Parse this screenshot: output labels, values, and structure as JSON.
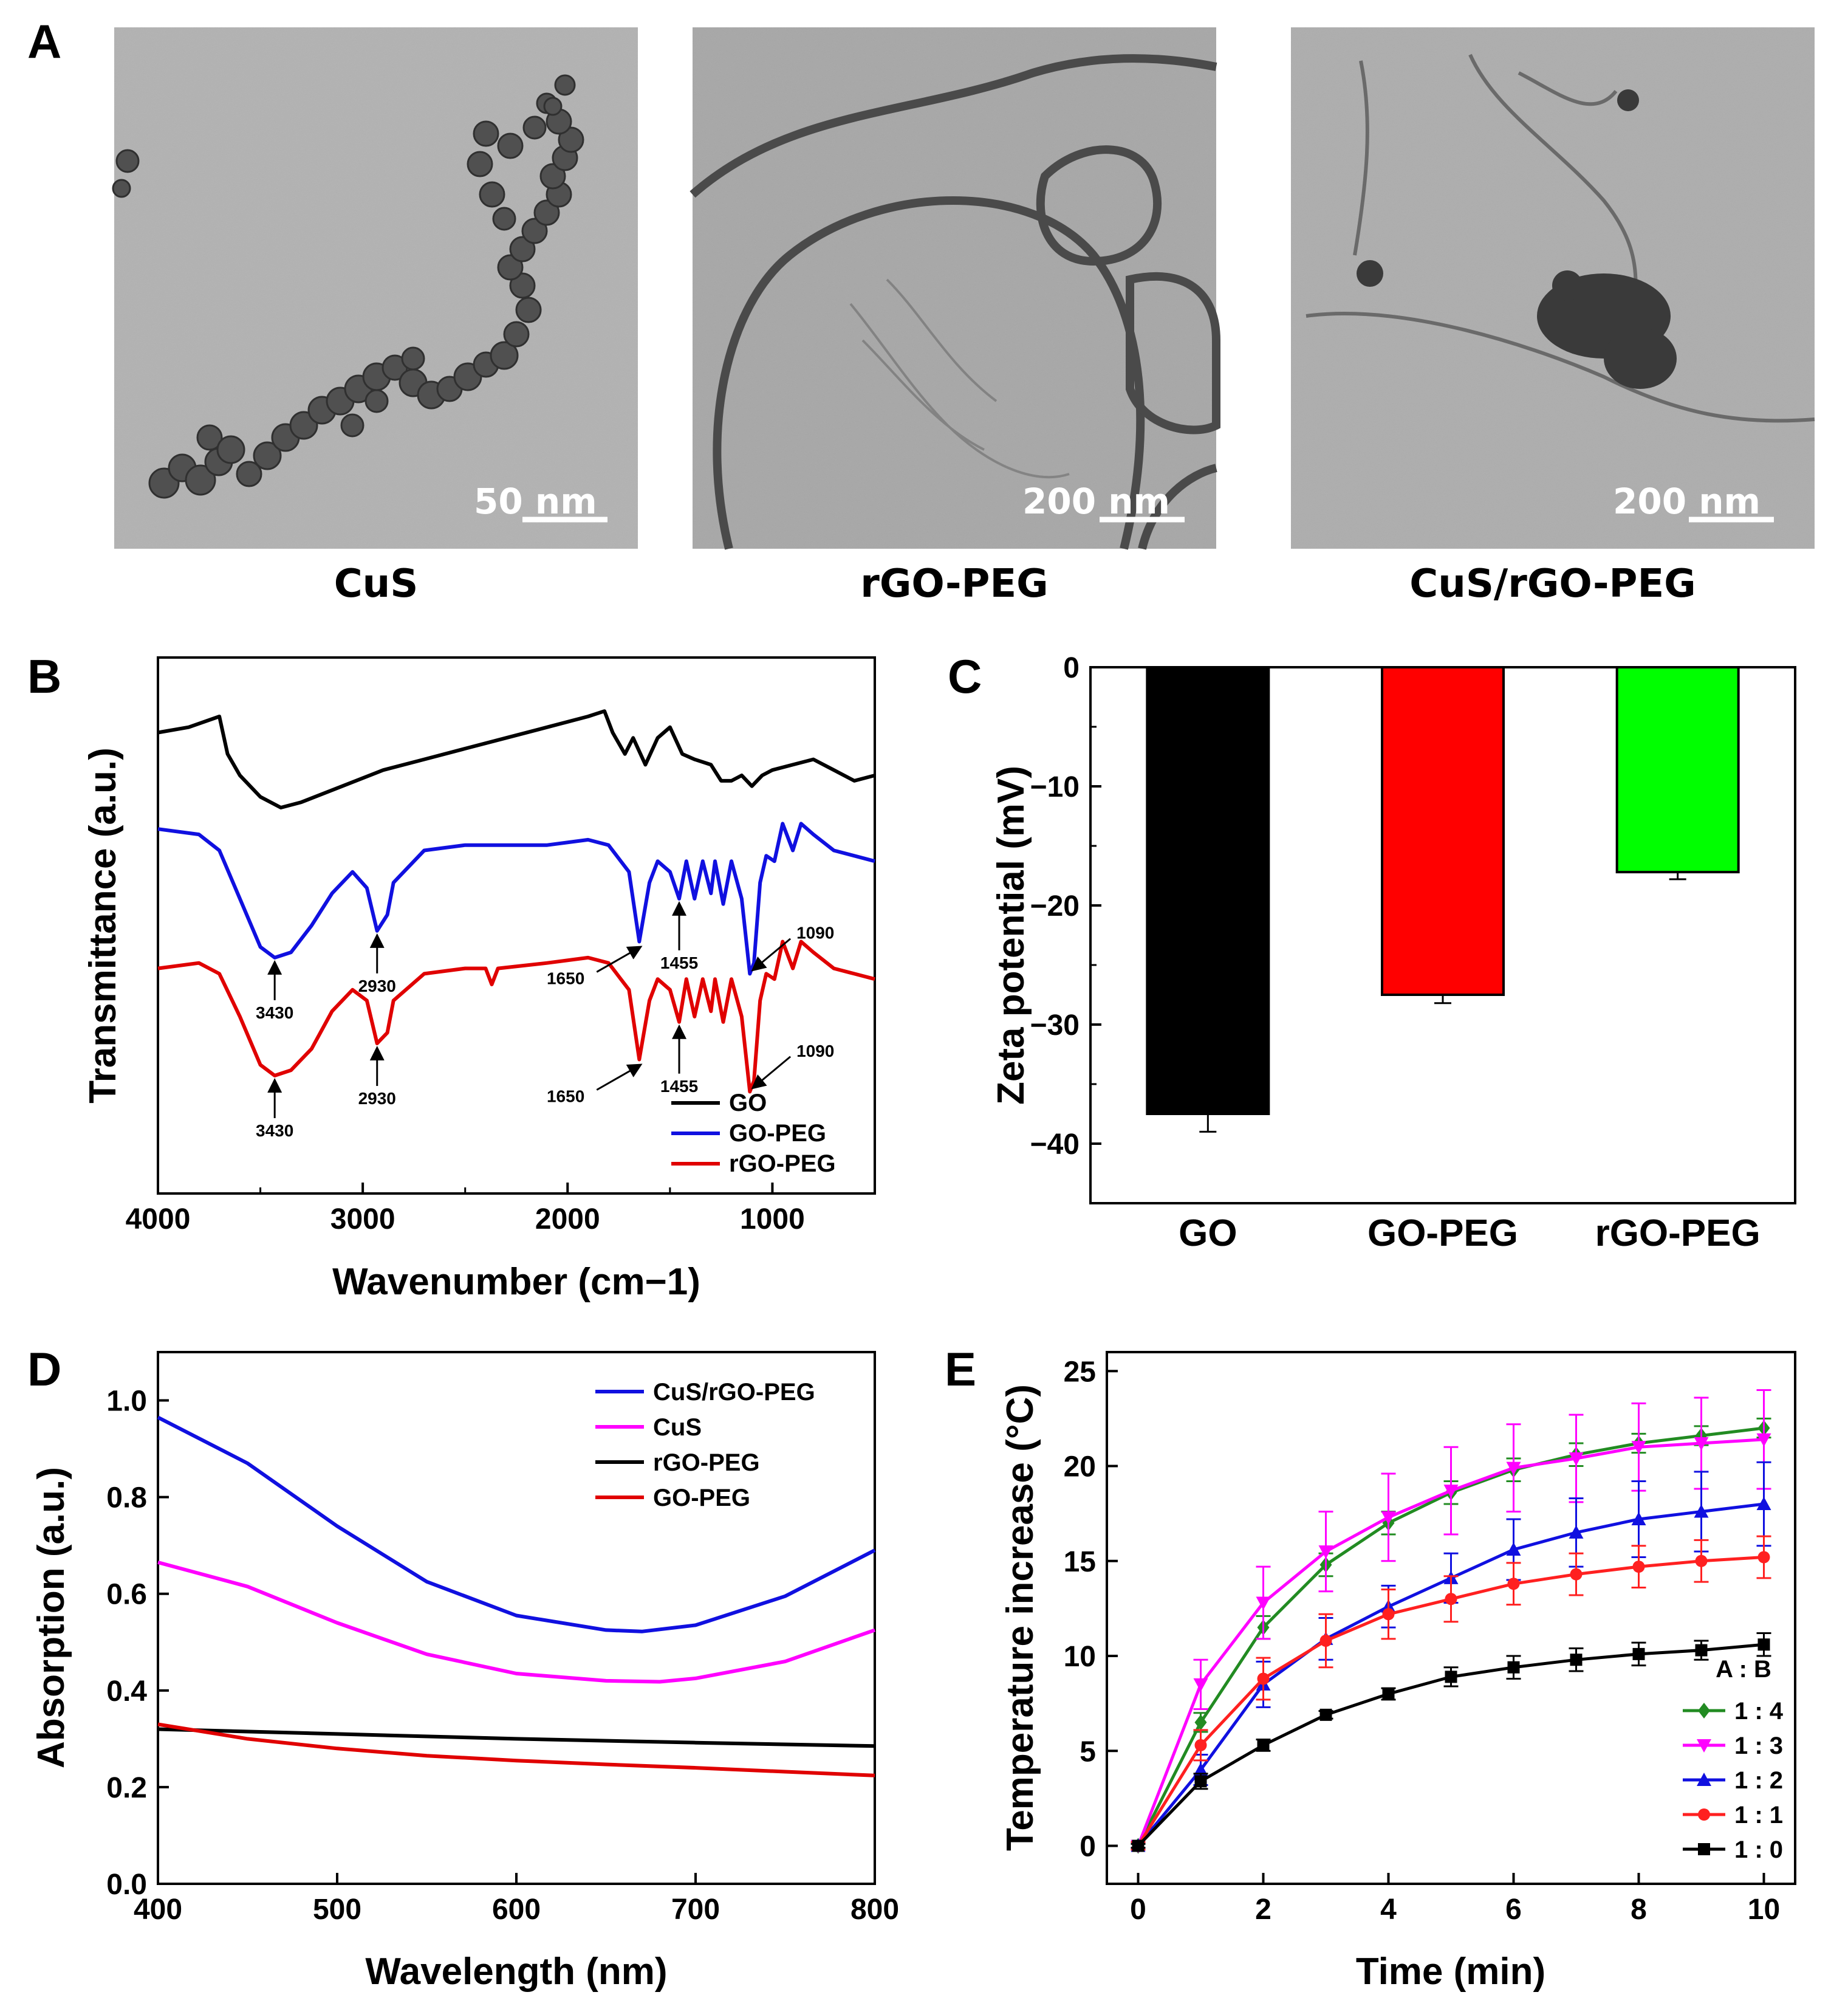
{
  "figure": {
    "panel_labels": [
      "A",
      "B",
      "C",
      "D",
      "E"
    ]
  },
  "tem_images": [
    {
      "caption": "CuS",
      "scale_bar": "50 nm"
    },
    {
      "caption": "rGO-PEG",
      "scale_bar": "200 nm"
    },
    {
      "caption": "CuS/rGO-PEG",
      "scale_bar": "200 nm"
    }
  ],
  "chart_data": [
    {
      "panel": "B",
      "type": "line",
      "title": "",
      "xlabel": "Wavenumber (cm−1)",
      "ylabel": "Transmittance (a.u.)",
      "xlim": [
        4000,
        500
      ],
      "ylim": [
        0,
        100
      ],
      "xticks": [
        "4000",
        "3000",
        "2000",
        "1000"
      ],
      "legend": {
        "position": "bottom-right"
      },
      "series": [
        {
          "name": "GO",
          "color": "#000000",
          "points": [
            [
              4000,
              86
            ],
            [
              3850,
              87
            ],
            [
              3700,
              89
            ],
            [
              3660,
              82
            ],
            [
              3600,
              78
            ],
            [
              3500,
              74
            ],
            [
              3400,
              72
            ],
            [
              3300,
              73
            ],
            [
              3100,
              76
            ],
            [
              2900,
              79
            ],
            [
              2700,
              81
            ],
            [
              2500,
              83
            ],
            [
              2300,
              85
            ],
            [
              2100,
              87
            ],
            [
              1900,
              89
            ],
            [
              1820,
              90
            ],
            [
              1780,
              86
            ],
            [
              1720,
              82
            ],
            [
              1680,
              85
            ],
            [
              1620,
              80
            ],
            [
              1560,
              85
            ],
            [
              1500,
              87
            ],
            [
              1440,
              82
            ],
            [
              1380,
              81
            ],
            [
              1300,
              80
            ],
            [
              1250,
              77
            ],
            [
              1200,
              77
            ],
            [
              1150,
              78
            ],
            [
              1100,
              76
            ],
            [
              1050,
              78
            ],
            [
              1000,
              79
            ],
            [
              900,
              80
            ],
            [
              800,
              81
            ],
            [
              700,
              79
            ],
            [
              600,
              77
            ],
            [
              500,
              78
            ]
          ]
        },
        {
          "name": "GO-PEG",
          "color": "#1010e0",
          "points": [
            [
              4000,
              68
            ],
            [
              3800,
              67
            ],
            [
              3700,
              64
            ],
            [
              3600,
              55
            ],
            [
              3500,
              46
            ],
            [
              3430,
              44
            ],
            [
              3350,
              45
            ],
            [
              3250,
              50
            ],
            [
              3150,
              56
            ],
            [
              3050,
              60
            ],
            [
              2980,
              57
            ],
            [
              2930,
              49
            ],
            [
              2880,
              52
            ],
            [
              2850,
              58
            ],
            [
              2700,
              64
            ],
            [
              2500,
              65
            ],
            [
              2300,
              65
            ],
            [
              2100,
              65
            ],
            [
              1900,
              66
            ],
            [
              1800,
              65
            ],
            [
              1700,
              60
            ],
            [
              1650,
              47
            ],
            [
              1600,
              58
            ],
            [
              1560,
              62
            ],
            [
              1500,
              60
            ],
            [
              1455,
              55
            ],
            [
              1420,
              62
            ],
            [
              1380,
              55
            ],
            [
              1340,
              62
            ],
            [
              1300,
              56
            ],
            [
              1280,
              62
            ],
            [
              1240,
              54
            ],
            [
              1200,
              62
            ],
            [
              1150,
              55
            ],
            [
              1110,
              41
            ],
            [
              1090,
              43
            ],
            [
              1060,
              58
            ],
            [
              1030,
              63
            ],
            [
              990,
              62
            ],
            [
              950,
              69
            ],
            [
              900,
              64
            ],
            [
              860,
              69
            ],
            [
              800,
              67
            ],
            [
              700,
              64
            ],
            [
              600,
              63
            ],
            [
              500,
              62
            ]
          ]
        },
        {
          "name": "rGO-PEG",
          "color": "#e00000",
          "points": [
            [
              4000,
              42
            ],
            [
              3800,
              43
            ],
            [
              3700,
              41
            ],
            [
              3600,
              33
            ],
            [
              3500,
              24
            ],
            [
              3430,
              22
            ],
            [
              3350,
              23
            ],
            [
              3250,
              27
            ],
            [
              3150,
              34
            ],
            [
              3050,
              38
            ],
            [
              2980,
              36
            ],
            [
              2930,
              28
            ],
            [
              2880,
              30
            ],
            [
              2850,
              36
            ],
            [
              2700,
              41
            ],
            [
              2500,
              42
            ],
            [
              2400,
              42
            ],
            [
              2370,
              39
            ],
            [
              2340,
              42
            ],
            [
              2100,
              43
            ],
            [
              1900,
              44
            ],
            [
              1800,
              43
            ],
            [
              1700,
              38
            ],
            [
              1650,
              25
            ],
            [
              1600,
              36
            ],
            [
              1560,
              40
            ],
            [
              1500,
              38
            ],
            [
              1455,
              32
            ],
            [
              1420,
              40
            ],
            [
              1380,
              33
            ],
            [
              1340,
              40
            ],
            [
              1300,
              34
            ],
            [
              1280,
              40
            ],
            [
              1240,
              32
            ],
            [
              1200,
              40
            ],
            [
              1150,
              33
            ],
            [
              1110,
              19
            ],
            [
              1090,
              21
            ],
            [
              1060,
              36
            ],
            [
              1030,
              41
            ],
            [
              990,
              40
            ],
            [
              950,
              47
            ],
            [
              900,
              42
            ],
            [
              860,
              47
            ],
            [
              800,
              45
            ],
            [
              700,
              42
            ],
            [
              600,
              41
            ],
            [
              500,
              40
            ]
          ]
        }
      ],
      "annotations": [
        {
          "text": "3430",
          "series": "GO-PEG"
        },
        {
          "text": "2930",
          "series": "GO-PEG"
        },
        {
          "text": "1650",
          "series": "GO-PEG"
        },
        {
          "text": "1455",
          "series": "GO-PEG"
        },
        {
          "text": "1090",
          "series": "GO-PEG"
        },
        {
          "text": "3430",
          "series": "rGO-PEG"
        },
        {
          "text": "2930",
          "series": "rGO-PEG"
        },
        {
          "text": "1650",
          "series": "rGO-PEG"
        },
        {
          "text": "1455",
          "series": "rGO-PEG"
        },
        {
          "text": "1090",
          "series": "rGO-PEG"
        }
      ]
    },
    {
      "panel": "C",
      "type": "bar",
      "title": "",
      "xlabel": "",
      "ylabel": "Zeta potential (mV)",
      "categories": [
        "GO",
        "GO-PEG",
        "rGO-PEG"
      ],
      "values": [
        -37.5,
        -27.5,
        -17.2
      ],
      "errors": [
        1.5,
        0.7,
        0.6
      ],
      "colors": [
        "#000000",
        "#ff0000",
        "#00ff00"
      ],
      "ylim": [
        -45,
        0
      ],
      "yticks": [
        "0",
        "−10",
        "−20",
        "−30",
        "−40"
      ]
    },
    {
      "panel": "D",
      "type": "line",
      "title": "",
      "xlabel": "Wavelength (nm)",
      "ylabel": "Absorption (a.u.)",
      "xlim": [
        400,
        800
      ],
      "ylim": [
        0,
        1.1
      ],
      "xticks": [
        "400",
        "500",
        "600",
        "700",
        "800"
      ],
      "yticks": [
        "0.0",
        "0.2",
        "0.4",
        "0.6",
        "0.8",
        "1.0"
      ],
      "legend": {
        "position": "top-right"
      },
      "series": [
        {
          "name": "CuS/rGO-PEG",
          "color": "#1010e0",
          "points": [
            [
              400,
              0.965
            ],
            [
              450,
              0.87
            ],
            [
              500,
              0.74
            ],
            [
              550,
              0.625
            ],
            [
              600,
              0.555
            ],
            [
              650,
              0.525
            ],
            [
              670,
              0.522
            ],
            [
              700,
              0.535
            ],
            [
              750,
              0.595
            ],
            [
              800,
              0.69
            ]
          ]
        },
        {
          "name": "CuS",
          "color": "#ff00ff",
          "points": [
            [
              400,
              0.665
            ],
            [
              450,
              0.615
            ],
            [
              500,
              0.54
            ],
            [
              550,
              0.475
            ],
            [
              600,
              0.435
            ],
            [
              650,
              0.42
            ],
            [
              680,
              0.418
            ],
            [
              700,
              0.425
            ],
            [
              750,
              0.46
            ],
            [
              800,
              0.525
            ]
          ]
        },
        {
          "name": "rGO-PEG",
          "color": "#000000",
          "points": [
            [
              400,
              0.32
            ],
            [
              500,
              0.31
            ],
            [
              600,
              0.3
            ],
            [
              700,
              0.292
            ],
            [
              800,
              0.285
            ]
          ]
        },
        {
          "name": "GO-PEG",
          "color": "#e00000",
          "points": [
            [
              400,
              0.33
            ],
            [
              450,
              0.3
            ],
            [
              500,
              0.28
            ],
            [
              550,
              0.265
            ],
            [
              600,
              0.255
            ],
            [
              650,
              0.247
            ],
            [
              700,
              0.24
            ],
            [
              750,
              0.232
            ],
            [
              800,
              0.224
            ]
          ]
        }
      ]
    },
    {
      "panel": "E",
      "type": "line",
      "title": "",
      "xlabel": "Time (min)",
      "ylabel": "Temperature increase (°C)",
      "xlim": [
        -0.5,
        10.5
      ],
      "ylim": [
        -2,
        26
      ],
      "xticks": [
        "0",
        "2",
        "4",
        "6",
        "8",
        "10"
      ],
      "yticks": [
        "0",
        "5",
        "10",
        "15",
        "20",
        "25"
      ],
      "legend": {
        "position": "bottom-right",
        "header": "A : B"
      },
      "x": [
        0,
        1,
        2,
        3,
        4,
        5,
        6,
        7,
        8,
        9,
        10
      ],
      "series": [
        {
          "name": "1 : 4",
          "color": "#228b22",
          "marker": "diamond",
          "values": [
            0,
            6.5,
            11.5,
            14.8,
            17.0,
            18.6,
            19.8,
            20.6,
            21.2,
            21.6,
            22.0
          ],
          "errors": [
            0.2,
            0.5,
            0.6,
            0.6,
            0.6,
            0.6,
            0.6,
            0.6,
            0.5,
            0.5,
            0.5
          ]
        },
        {
          "name": "1 : 3",
          "color": "#ff00ff",
          "marker": "triangle-down",
          "values": [
            0,
            8.5,
            12.8,
            15.5,
            17.3,
            18.7,
            19.9,
            20.4,
            21.0,
            21.2,
            21.4
          ],
          "errors": [
            0.2,
            1.3,
            1.9,
            2.1,
            2.3,
            2.3,
            2.3,
            2.3,
            2.3,
            2.4,
            2.6
          ]
        },
        {
          "name": "1 : 2",
          "color": "#1010e0",
          "marker": "triangle-up",
          "values": [
            0,
            4.0,
            8.5,
            10.9,
            12.6,
            14.1,
            15.6,
            16.5,
            17.2,
            17.6,
            18.0
          ],
          "errors": [
            0.2,
            0.8,
            1.2,
            1.1,
            1.1,
            1.3,
            1.6,
            1.8,
            2.0,
            2.1,
            2.2
          ]
        },
        {
          "name": "1 : 1",
          "color": "#ff2020",
          "marker": "circle",
          "values": [
            0,
            5.3,
            8.8,
            10.8,
            12.2,
            13.0,
            13.8,
            14.3,
            14.7,
            15.0,
            15.2
          ],
          "errors": [
            0.2,
            0.8,
            1.1,
            1.4,
            1.3,
            1.2,
            1.1,
            1.1,
            1.1,
            1.1,
            1.1
          ]
        },
        {
          "name": "1 : 0",
          "color": "#000000",
          "marker": "square",
          "values": [
            0,
            3.4,
            5.3,
            6.9,
            8.0,
            8.9,
            9.4,
            9.8,
            10.1,
            10.3,
            10.6
          ],
          "errors": [
            0.1,
            0.4,
            0.3,
            0.2,
            0.3,
            0.5,
            0.6,
            0.6,
            0.6,
            0.5,
            0.6
          ]
        }
      ]
    }
  ]
}
